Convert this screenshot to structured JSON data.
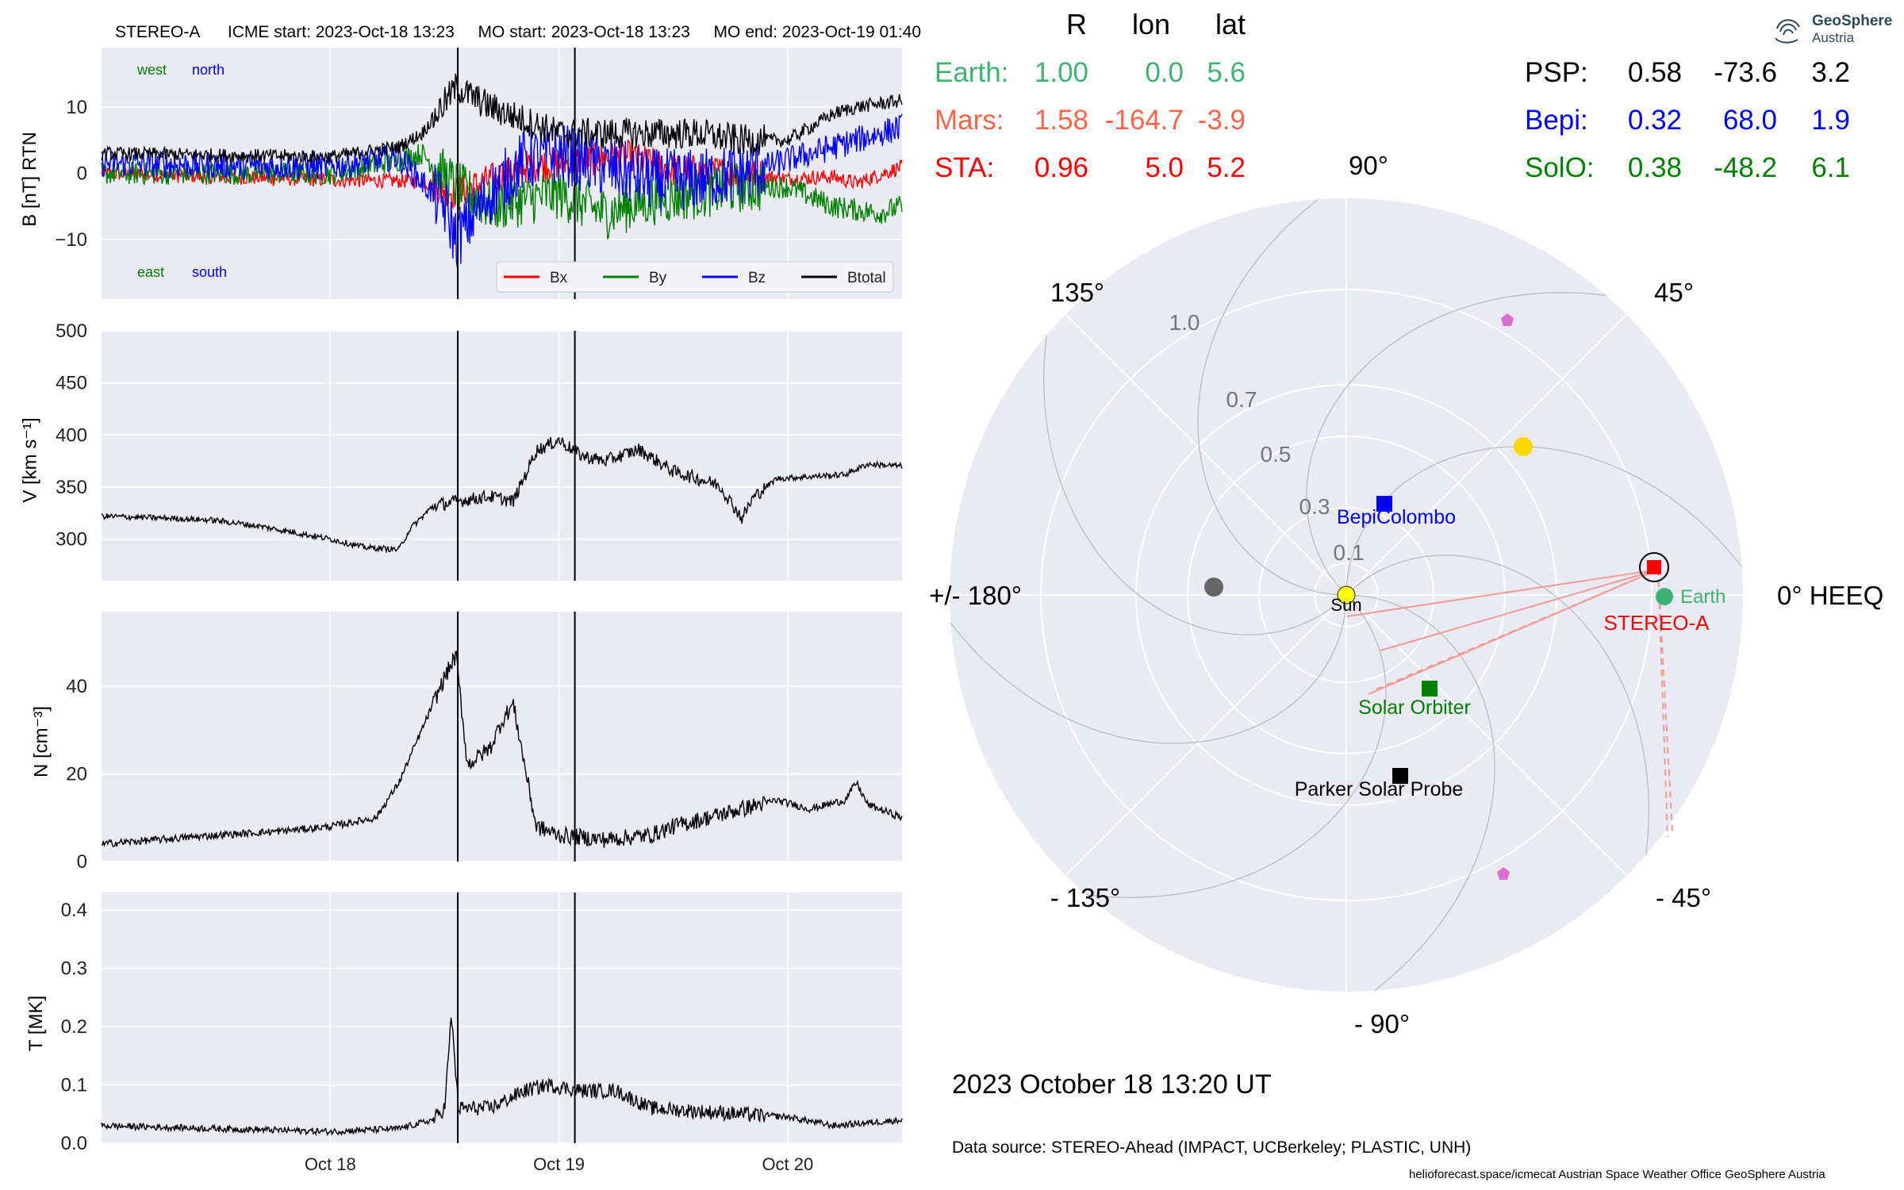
{
  "header": {
    "spacecraft": "STEREO-A",
    "icme_start": "ICME start: 2023-Oct-18 13:23",
    "mo_start": "MO start: 2023-Oct-18 13:23",
    "mo_end": "MO end: 2023-Oct-19 01:40"
  },
  "legend_words": {
    "west": "west",
    "north": "north",
    "east": "east",
    "south": "south"
  },
  "colors": {
    "bx": "#ff0000",
    "by": "#008000",
    "bz": "#0000ff",
    "btotal": "#000000",
    "panel_bg": "#eaeaf2",
    "earth": "#3cb371",
    "mars": "#ff6347",
    "sta": "#ff0000",
    "psp": "#000000",
    "bepi": "#0000ff",
    "solo": "#008000"
  },
  "chart_data": [
    {
      "type": "line",
      "panel": "magnetic field",
      "ylabel": "B [nT] RTN",
      "ylim": [
        -19,
        19
      ],
      "yticks": [
        "10",
        "0",
        "−10"
      ],
      "xlim_days": [
        -1,
        2.5
      ],
      "x_ticklabels": [
        "Oct 18",
        "Oct 19",
        "Oct 20"
      ],
      "event_lines": [
        "2023-Oct-18 13:23",
        "2023-Oct-19 01:40"
      ],
      "series": [
        {
          "name": "Bx",
          "key": "bx",
          "points": [
            [
              -1,
              0
            ],
            [
              0,
              -1
            ],
            [
              0.4,
              -1.2
            ],
            [
              0.55,
              -3
            ],
            [
              0.7,
              -1
            ],
            [
              0.85,
              1
            ],
            [
              1.1,
              2
            ],
            [
              1.3,
              2.5
            ],
            [
              1.5,
              0.5
            ],
            [
              1.8,
              0
            ],
            [
              2.0,
              -0.8
            ],
            [
              2.2,
              -0.5
            ],
            [
              2.3,
              -1.5
            ],
            [
              2.5,
              1
            ]
          ]
        },
        {
          "name": "By",
          "key": "by",
          "points": [
            [
              -1,
              0
            ],
            [
              0,
              0
            ],
            [
              0.3,
              2
            ],
            [
              0.4,
              3
            ],
            [
              0.55,
              -2
            ],
            [
              0.7,
              -5
            ],
            [
              0.85,
              -4
            ],
            [
              1.0,
              -3
            ],
            [
              1.2,
              -6
            ],
            [
              1.4,
              -4
            ],
            [
              1.6,
              -3
            ],
            [
              1.8,
              -2
            ],
            [
              2.0,
              -2
            ],
            [
              2.2,
              -5
            ],
            [
              2.4,
              -6
            ],
            [
              2.5,
              -5
            ]
          ]
        },
        {
          "name": "Bz",
          "key": "bz",
          "points": [
            [
              -1,
              1.5
            ],
            [
              0,
              1
            ],
            [
              0.3,
              2.5
            ],
            [
              0.5,
              -5
            ],
            [
              0.55,
              -10
            ],
            [
              0.7,
              -3
            ],
            [
              0.85,
              2
            ],
            [
              1.0,
              3
            ],
            [
              1.2,
              1
            ],
            [
              1.4,
              -1
            ],
            [
              1.6,
              -1
            ],
            [
              1.8,
              0
            ],
            [
              2.1,
              3
            ],
            [
              2.3,
              5
            ],
            [
              2.5,
              7
            ]
          ]
        },
        {
          "name": "Btotal",
          "key": "btotal",
          "points": [
            [
              -1,
              3
            ],
            [
              0,
              2.5
            ],
            [
              0.3,
              4
            ],
            [
              0.4,
              6
            ],
            [
              0.55,
              13
            ],
            [
              0.7,
              10
            ],
            [
              0.85,
              8
            ],
            [
              1.0,
              6
            ],
            [
              1.2,
              6
            ],
            [
              1.4,
              6
            ],
            [
              1.6,
              6
            ],
            [
              1.8,
              5
            ],
            [
              2.0,
              5
            ],
            [
              2.2,
              9
            ],
            [
              2.3,
              10
            ],
            [
              2.5,
              11
            ]
          ]
        }
      ]
    },
    {
      "type": "line",
      "panel": "speed",
      "ylabel": "V [km s⁻¹]",
      "ylim": [
        260,
        500
      ],
      "yticks": [
        "500",
        "450",
        "400",
        "350",
        "300"
      ],
      "series": [
        {
          "name": "V",
          "points": [
            [
              -1,
              322
            ],
            [
              -0.7,
              320
            ],
            [
              -0.5,
              318
            ],
            [
              -0.3,
              312
            ],
            [
              0,
              300
            ],
            [
              0.15,
              292
            ],
            [
              0.3,
              290
            ],
            [
              0.35,
              310
            ],
            [
              0.45,
              332
            ],
            [
              0.55,
              336
            ],
            [
              0.6,
              338
            ],
            [
              0.7,
              341
            ],
            [
              0.8,
              336
            ],
            [
              0.85,
              360
            ],
            [
              0.9,
              385
            ],
            [
              1.0,
              395
            ],
            [
              1.1,
              380
            ],
            [
              1.2,
              375
            ],
            [
              1.35,
              386
            ],
            [
              1.45,
              372
            ],
            [
              1.5,
              365
            ],
            [
              1.7,
              352
            ],
            [
              1.8,
              320
            ],
            [
              1.85,
              340
            ],
            [
              1.95,
              358
            ],
            [
              2.1,
              360
            ],
            [
              2.25,
              362
            ],
            [
              2.35,
              372
            ],
            [
              2.5,
              370
            ]
          ]
        }
      ]
    },
    {
      "type": "line",
      "panel": "density",
      "ylabel": "N [cm⁻³]",
      "ylim": [
        0,
        57
      ],
      "yticks": [
        "40",
        "20",
        "0"
      ],
      "series": [
        {
          "name": "N",
          "points": [
            [
              -1,
              4
            ],
            [
              -0.5,
              6
            ],
            [
              -0.2,
              7
            ],
            [
              0,
              8
            ],
            [
              0.2,
              10
            ],
            [
              0.3,
              18
            ],
            [
              0.4,
              30
            ],
            [
              0.5,
              42
            ],
            [
              0.55,
              47
            ],
            [
              0.6,
              22
            ],
            [
              0.7,
              26
            ],
            [
              0.75,
              32
            ],
            [
              0.8,
              36
            ],
            [
              0.85,
              22
            ],
            [
              0.9,
              8
            ],
            [
              1.0,
              6
            ],
            [
              1.2,
              5
            ],
            [
              1.4,
              6
            ],
            [
              1.5,
              8
            ],
            [
              1.65,
              10
            ],
            [
              1.8,
              12
            ],
            [
              1.95,
              14
            ],
            [
              2.1,
              12
            ],
            [
              2.25,
              14
            ],
            [
              2.3,
              18
            ],
            [
              2.35,
              13
            ],
            [
              2.5,
              10
            ]
          ]
        }
      ]
    },
    {
      "type": "line",
      "panel": "temperature",
      "ylabel": "T [MK]",
      "ylim": [
        0,
        0.43
      ],
      "yticks": [
        "0.4",
        "0.3",
        "0.2",
        "0.1",
        "0.0"
      ],
      "series": [
        {
          "name": "T",
          "points": [
            [
              -1,
              0.03
            ],
            [
              -0.5,
              0.025
            ],
            [
              0,
              0.02
            ],
            [
              0.3,
              0.025
            ],
            [
              0.45,
              0.04
            ],
            [
              0.5,
              0.06
            ],
            [
              0.53,
              0.22
            ],
            [
              0.56,
              0.06
            ],
            [
              0.7,
              0.06
            ],
            [
              0.85,
              0.09
            ],
            [
              0.95,
              0.1
            ],
            [
              1.1,
              0.09
            ],
            [
              1.25,
              0.09
            ],
            [
              1.4,
              0.06
            ],
            [
              1.6,
              0.055
            ],
            [
              1.8,
              0.05
            ],
            [
              2.0,
              0.045
            ],
            [
              2.2,
              0.03
            ],
            [
              2.5,
              0.04
            ]
          ]
        }
      ]
    },
    {
      "type": "scatter",
      "panel": "polar positions",
      "r_labels": [
        "0.1",
        "0.3",
        "0.5",
        "0.7",
        "1.0"
      ],
      "angle_labels": [
        "90°",
        "45°",
        "0° HEEQ",
        "- 45°",
        "- 90°",
        "- 135°",
        "+/- 180°",
        "135°"
      ],
      "bodies": [
        {
          "name": "Sun",
          "r": 0,
          "lon": 0
        },
        {
          "name": "Earth",
          "r": 1.0,
          "lon": 0.0
        },
        {
          "name": "STEREO-A",
          "r": 0.96,
          "lon": 5.0
        },
        {
          "name": "BepiColombo",
          "r": 0.32,
          "lon": 68.0
        },
        {
          "name": "Solar Orbiter",
          "r": 0.38,
          "lon": -48.2
        },
        {
          "name": "Parker Solar Probe",
          "r": 0.58,
          "lon": -73.6
        }
      ]
    }
  ],
  "table_left": {
    "headers": [
      "R",
      "lon",
      "lat"
    ],
    "rows": [
      {
        "label": "Earth:",
        "r": "1.00",
        "lon": "0.0",
        "lat": "5.6",
        "key": "earth"
      },
      {
        "label": "Mars:",
        "r": "1.58",
        "lon": "-164.7",
        "lat": "-3.9",
        "key": "mars"
      },
      {
        "label": "STA:",
        "r": "0.96",
        "lon": "5.0",
        "lat": "5.2",
        "key": "sta"
      }
    ]
  },
  "table_right": {
    "rows": [
      {
        "label": "PSP:",
        "r": "0.58",
        "lon": "-73.6",
        "lat": "3.2",
        "key": "psp"
      },
      {
        "label": "Bepi:",
        "r": "0.32",
        "lon": "68.0",
        "lat": "1.9",
        "key": "bepi"
      },
      {
        "label": "SolO:",
        "r": "0.38",
        "lon": "-48.2",
        "lat": "6.1",
        "key": "solo"
      }
    ]
  },
  "polar_labels": {
    "sun": "Sun",
    "earth": "Earth",
    "sta": "STEREO-A",
    "bepi": "BepiColombo",
    "solo": "Solar Orbiter",
    "psp": "Parker Solar Probe"
  },
  "date_text": "2023 October 18  13:20 UT",
  "data_source": "Data source: STEREO-Ahead (IMPACT, UCBerkeley; PLASTIC, UNH)",
  "footer": "helioforecast.space/icmecat   Austrian Space Weather Office   GeoSphere Austria",
  "logo": {
    "line1": "GeoSphere",
    "line2": "Austria"
  }
}
